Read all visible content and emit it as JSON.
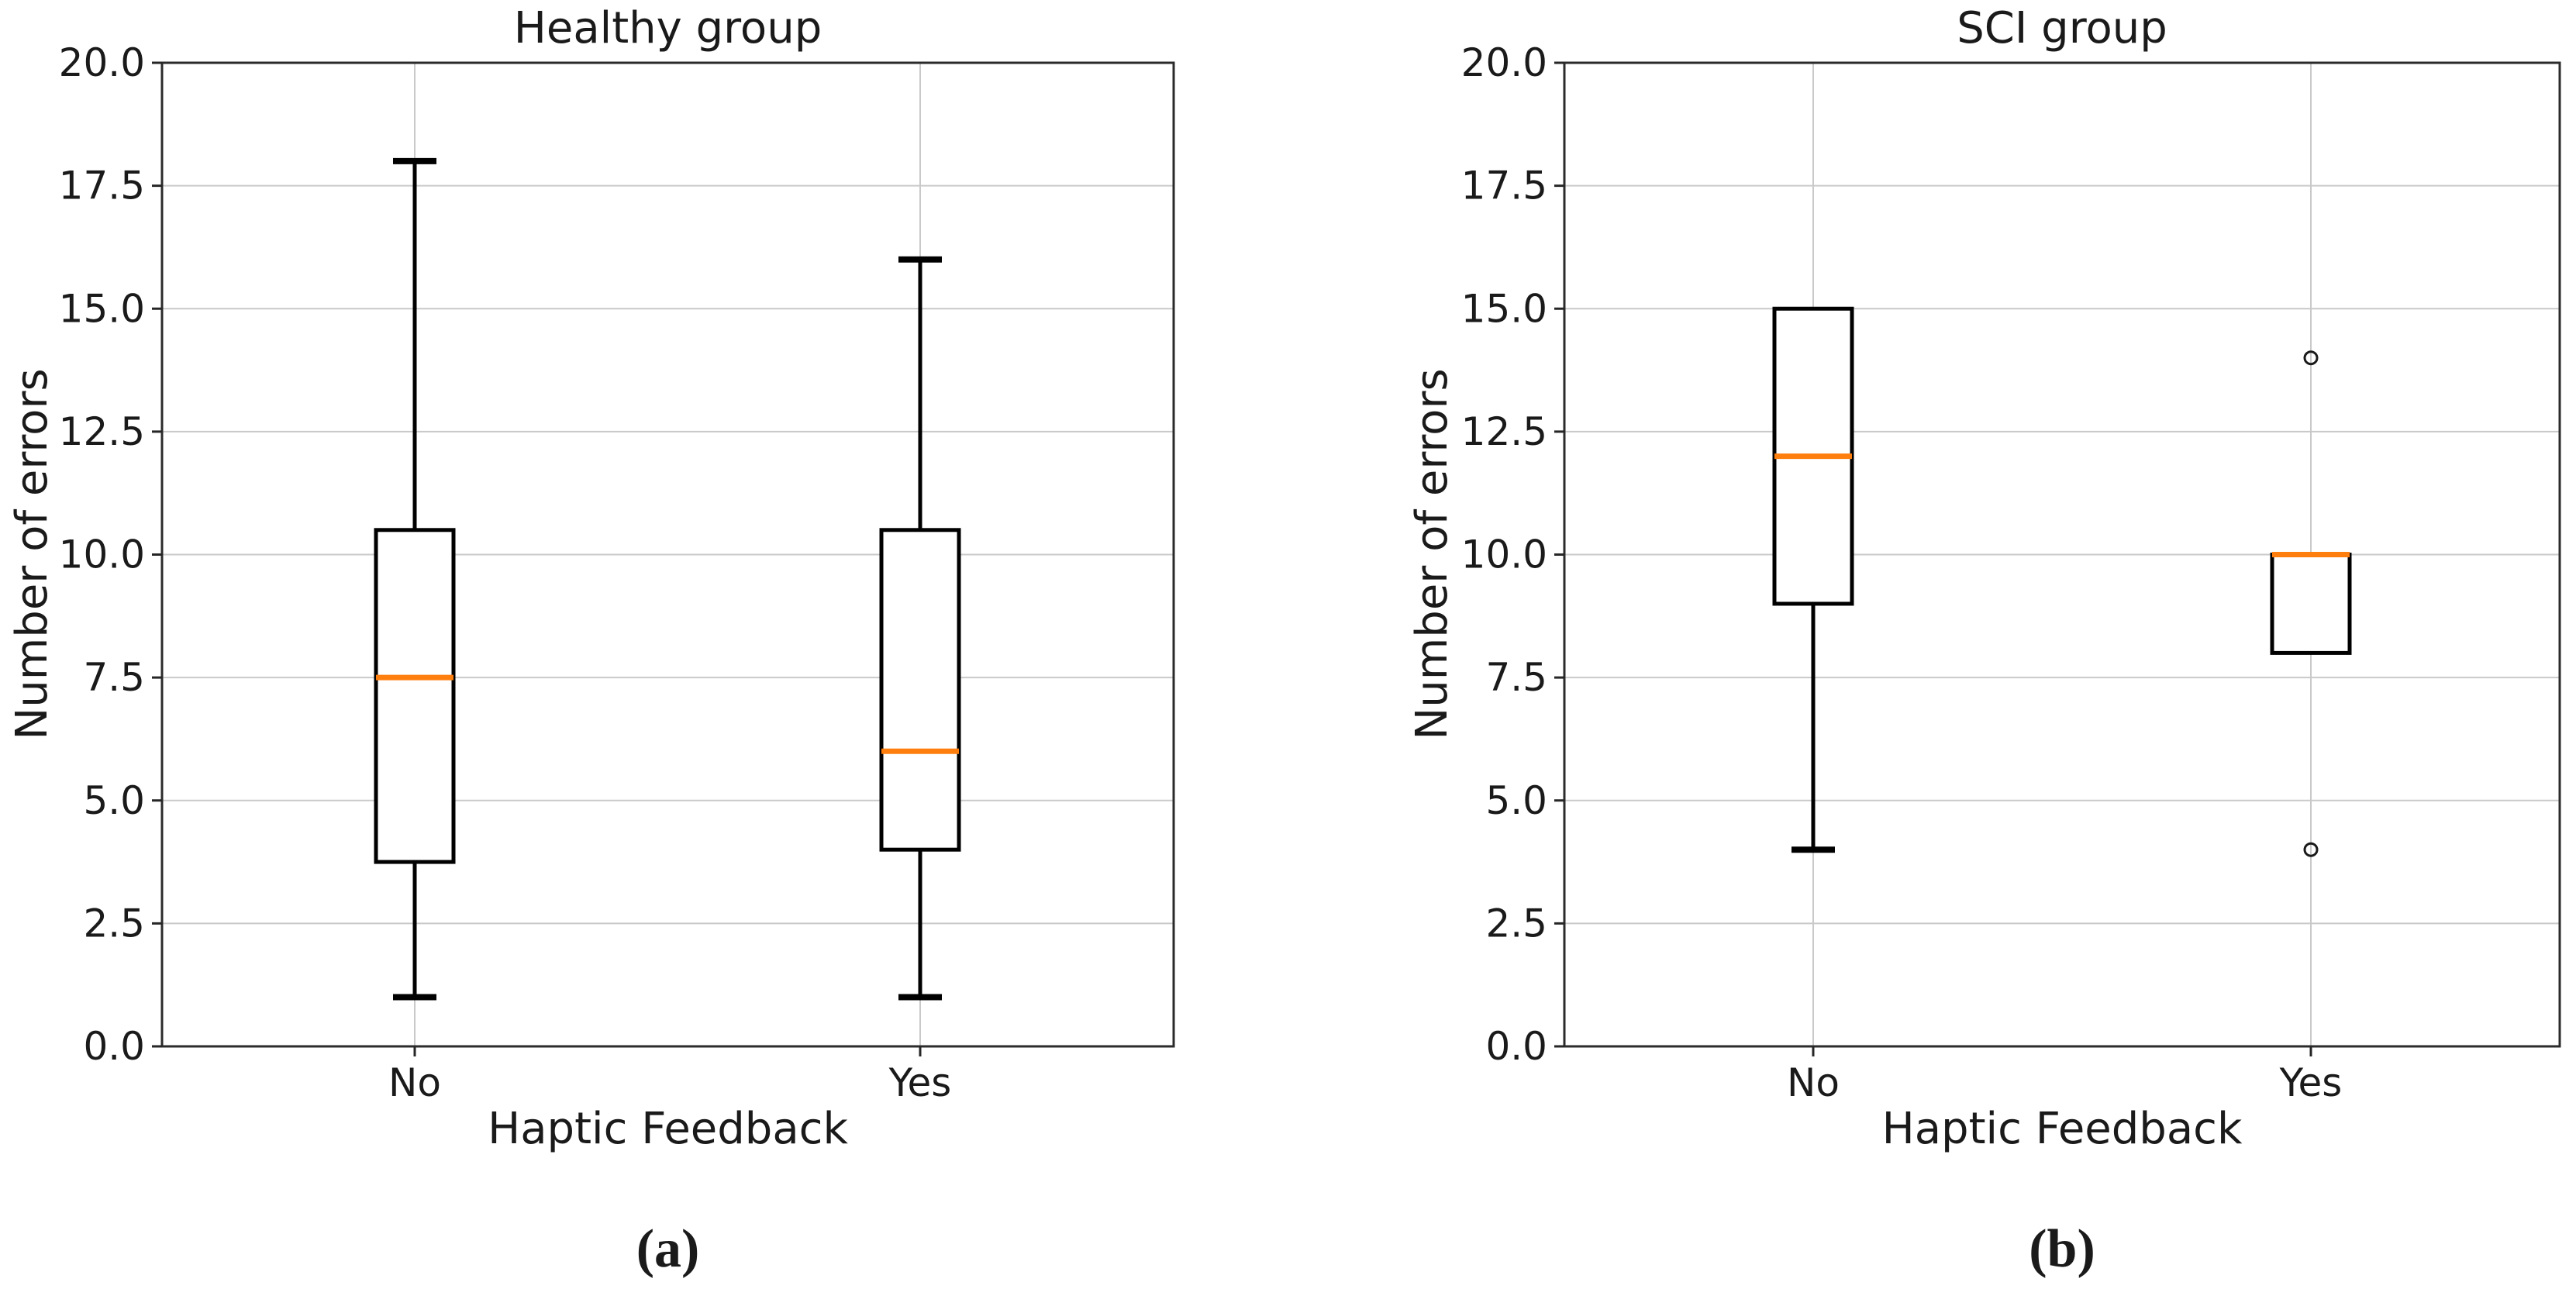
{
  "page": {
    "background": "#ffffff"
  },
  "chart_data": [
    {
      "type": "box",
      "title": "Healthy group",
      "caption": "(a)",
      "xlabel": "Haptic Feedback",
      "ylabel": "Number of errors",
      "categories": [
        "No",
        "Yes"
      ],
      "ylim": [
        0,
        20
      ],
      "yticks": [
        0.0,
        2.5,
        5.0,
        7.5,
        10.0,
        12.5,
        15.0,
        17.5,
        20.0
      ],
      "grid": true,
      "legend": "none",
      "median_color": "#ff7f0e",
      "box_color": "#000000",
      "boxes": [
        {
          "category": "No",
          "whisker_low": 1.0,
          "q1": 3.75,
          "median": 7.5,
          "q3": 10.5,
          "whisker_high": 18.0,
          "outliers": []
        },
        {
          "category": "Yes",
          "whisker_low": 1.0,
          "q1": 4.0,
          "median": 6.0,
          "q3": 10.5,
          "whisker_high": 16.0,
          "outliers": []
        }
      ]
    },
    {
      "type": "box",
      "title": "SCI group",
      "caption": "(b)",
      "xlabel": "Haptic Feedback",
      "ylabel": "Number of errors",
      "categories": [
        "No",
        "Yes"
      ],
      "ylim": [
        0,
        20
      ],
      "yticks": [
        0.0,
        2.5,
        5.0,
        7.5,
        10.0,
        12.5,
        15.0,
        17.5,
        20.0
      ],
      "grid": true,
      "legend": "none",
      "median_color": "#ff7f0e",
      "box_color": "#000000",
      "boxes": [
        {
          "category": "No",
          "whisker_low": 4.0,
          "q1": 9.0,
          "median": 12.0,
          "q3": 15.0,
          "whisker_high": 15.0,
          "outliers": []
        },
        {
          "category": "Yes",
          "whisker_low": 8.0,
          "q1": 8.0,
          "median": 10.0,
          "q3": 10.0,
          "whisker_high": 10.0,
          "outliers": [
            14.0,
            4.0
          ]
        }
      ]
    }
  ]
}
